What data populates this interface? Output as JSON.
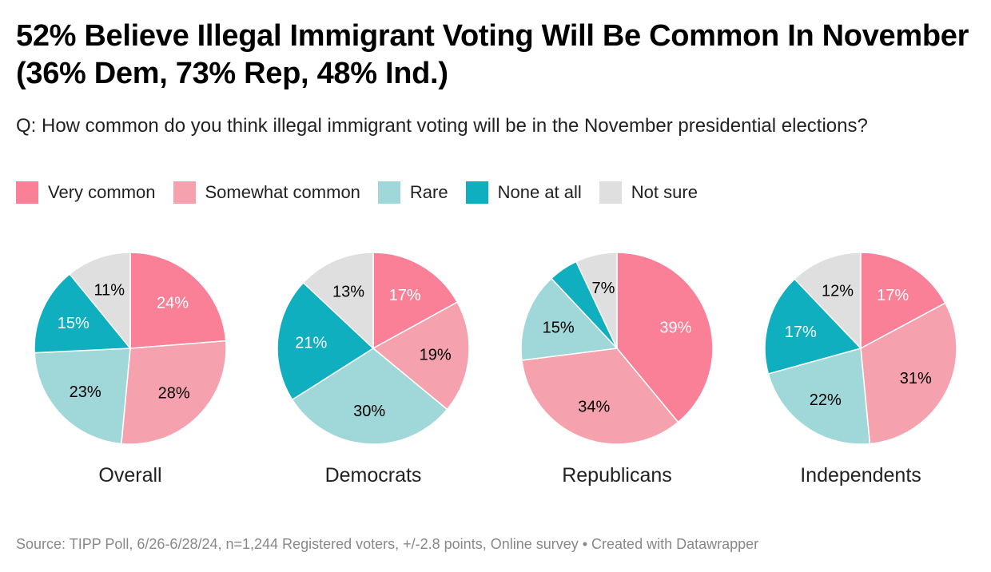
{
  "chart_data": {
    "type": "pie",
    "title": "52% Believe Illegal Immigrant Voting Will Be Common In November (36% Dem, 73% Rep, 48% Ind.)",
    "subtitle": "Q: How common do you think illegal immigrant voting will be in the November presidential elections?",
    "legend_position": "top-left",
    "categories": [
      "Very common",
      "Somewhat common",
      "Rare",
      "None at all",
      "Not sure"
    ],
    "colors": [
      "#f98097",
      "#f6a2ae",
      "#a0d8d9",
      "#10afc0",
      "#dfdfdf"
    ],
    "label_colors": [
      "#ffffff",
      "#000000",
      "#000000",
      "#ffffff",
      "#000000"
    ],
    "pies": [
      {
        "name": "Overall",
        "values": [
          24,
          28,
          23,
          15,
          11
        ],
        "labels": [
          "24%",
          "28%",
          "23%",
          "15%",
          "11%"
        ]
      },
      {
        "name": "Democrats",
        "values": [
          17,
          19,
          30,
          21,
          13
        ],
        "labels": [
          "17%",
          "19%",
          "30%",
          "21%",
          "13%"
        ]
      },
      {
        "name": "Republicans",
        "values": [
          39,
          34,
          15,
          5,
          7
        ],
        "labels": [
          "39%",
          "34%",
          "15%",
          "",
          "7%"
        ]
      },
      {
        "name": "Independents",
        "values": [
          17,
          31,
          22,
          17,
          12
        ],
        "labels": [
          "17%",
          "31%",
          "22%",
          "17%",
          "12%"
        ]
      }
    ]
  },
  "source": "Source: TIPP Poll, 6/26-6/28/24, n=1,244 Registered voters, +/-2.8 points, Online survey • Created with Datawrapper"
}
